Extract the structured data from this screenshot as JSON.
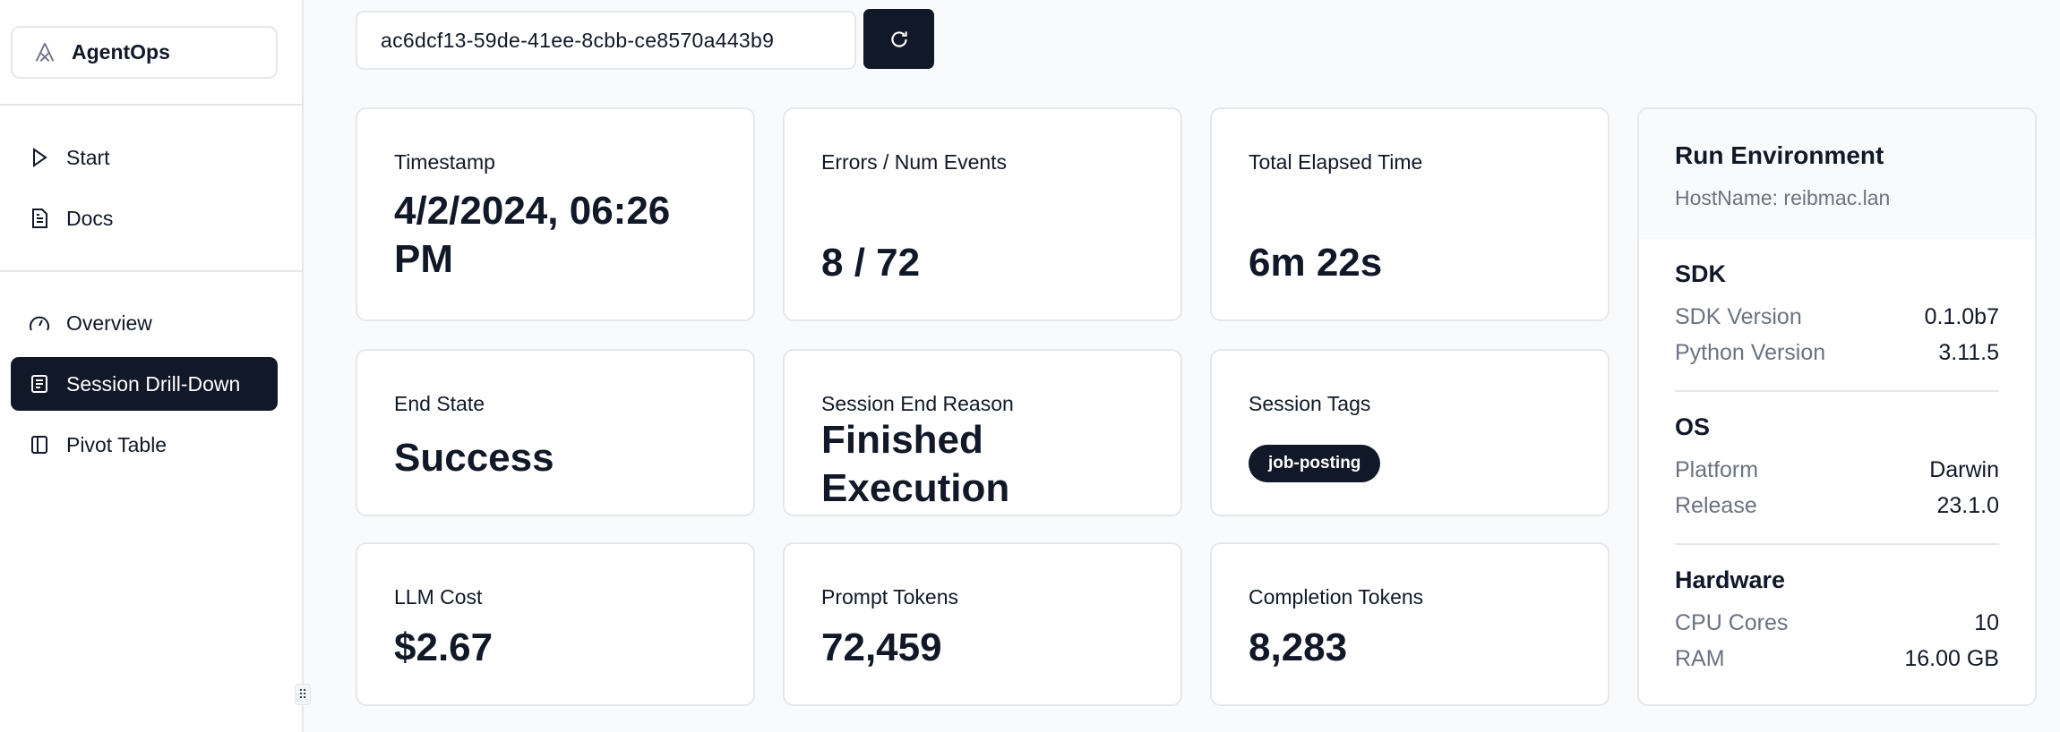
{
  "sidebar": {
    "brand": "AgentOps",
    "items": [
      {
        "label": "Start",
        "icon": "play-icon"
      },
      {
        "label": "Docs",
        "icon": "document-icon"
      },
      {
        "label": "Overview",
        "icon": "gauge-icon"
      },
      {
        "label": "Session Drill-Down",
        "icon": "list-icon",
        "active": true
      },
      {
        "label": "Pivot Table",
        "icon": "columns-icon"
      }
    ]
  },
  "session": {
    "id": "ac6dcf13-59de-41ee-8cbb-ce8570a443b9"
  },
  "cards": [
    {
      "label": "Timestamp",
      "value": "4/2/2024, 06:26 PM"
    },
    {
      "label": "Errors / Num Events",
      "value": "8 / 72"
    },
    {
      "label": "Total Elapsed Time",
      "value": "6m 22s"
    },
    {
      "label": "End State",
      "value": "Success"
    },
    {
      "label": "Session End Reason",
      "value": "Finished Execution"
    },
    {
      "label": "Session Tags",
      "tag": "job-posting"
    },
    {
      "label": "LLM Cost",
      "value": "$2.67"
    },
    {
      "label": "Prompt Tokens",
      "value": "72,459"
    },
    {
      "label": "Completion Tokens",
      "value": "8,283"
    }
  ],
  "env": {
    "title": "Run Environment",
    "host": "HostName: reibmac.lan",
    "sections": [
      {
        "title": "SDK",
        "rows": [
          {
            "k": "SDK Version",
            "v": "0.1.0b7"
          },
          {
            "k": "Python Version",
            "v": "3.11.5"
          }
        ]
      },
      {
        "title": "OS",
        "rows": [
          {
            "k": "Platform",
            "v": "Darwin"
          },
          {
            "k": "Release",
            "v": "23.1.0"
          }
        ]
      },
      {
        "title": "Hardware",
        "rows": [
          {
            "k": "CPU Cores",
            "v": "10"
          },
          {
            "k": "RAM",
            "v": "16.00 GB"
          }
        ]
      }
    ]
  },
  "colors": {
    "primary": "#111827",
    "muted": "#6b7280",
    "border": "#e5e7eb"
  }
}
